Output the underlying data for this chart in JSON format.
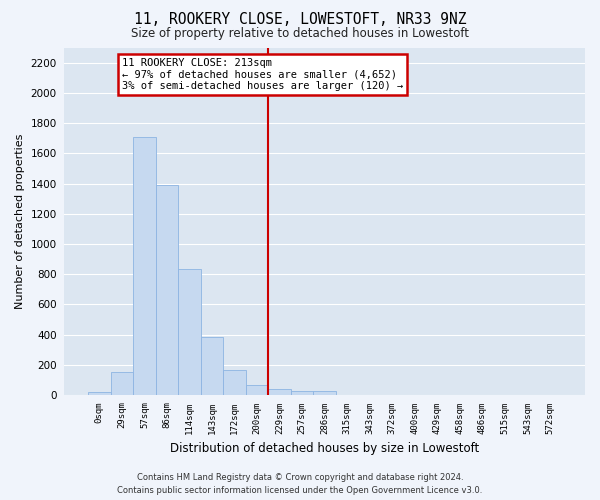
{
  "title": "11, ROOKERY CLOSE, LOWESTOFT, NR33 9NZ",
  "subtitle": "Size of property relative to detached houses in Lowestoft",
  "xlabel": "Distribution of detached houses by size in Lowestoft",
  "ylabel": "Number of detached properties",
  "bar_color": "#c6d9f0",
  "bar_edge_color": "#8db4e2",
  "background_color": "#dce6f1",
  "grid_color": "#ffffff",
  "categories": [
    "0sqm",
    "29sqm",
    "57sqm",
    "86sqm",
    "114sqm",
    "143sqm",
    "172sqm",
    "200sqm",
    "229sqm",
    "257sqm",
    "286sqm",
    "315sqm",
    "343sqm",
    "372sqm",
    "400sqm",
    "429sqm",
    "458sqm",
    "486sqm",
    "515sqm",
    "543sqm",
    "572sqm"
  ],
  "values": [
    18,
    155,
    1710,
    1390,
    835,
    385,
    165,
    65,
    38,
    30,
    30,
    0,
    0,
    0,
    0,
    0,
    0,
    0,
    0,
    0,
    0
  ],
  "ylim": [
    0,
    2300
  ],
  "yticks": [
    0,
    200,
    400,
    600,
    800,
    1000,
    1200,
    1400,
    1600,
    1800,
    2000,
    2200
  ],
  "vline_color": "#cc0000",
  "annotation_text": "11 ROOKERY CLOSE: 213sqm\n← 97% of detached houses are smaller (4,652)\n3% of semi-detached houses are larger (120) →",
  "annotation_box_color": "#cc0000",
  "footer_line1": "Contains HM Land Registry data © Crown copyright and database right 2024.",
  "footer_line2": "Contains public sector information licensed under the Open Government Licence v3.0.",
  "fig_width": 6.0,
  "fig_height": 5.0,
  "dpi": 100
}
